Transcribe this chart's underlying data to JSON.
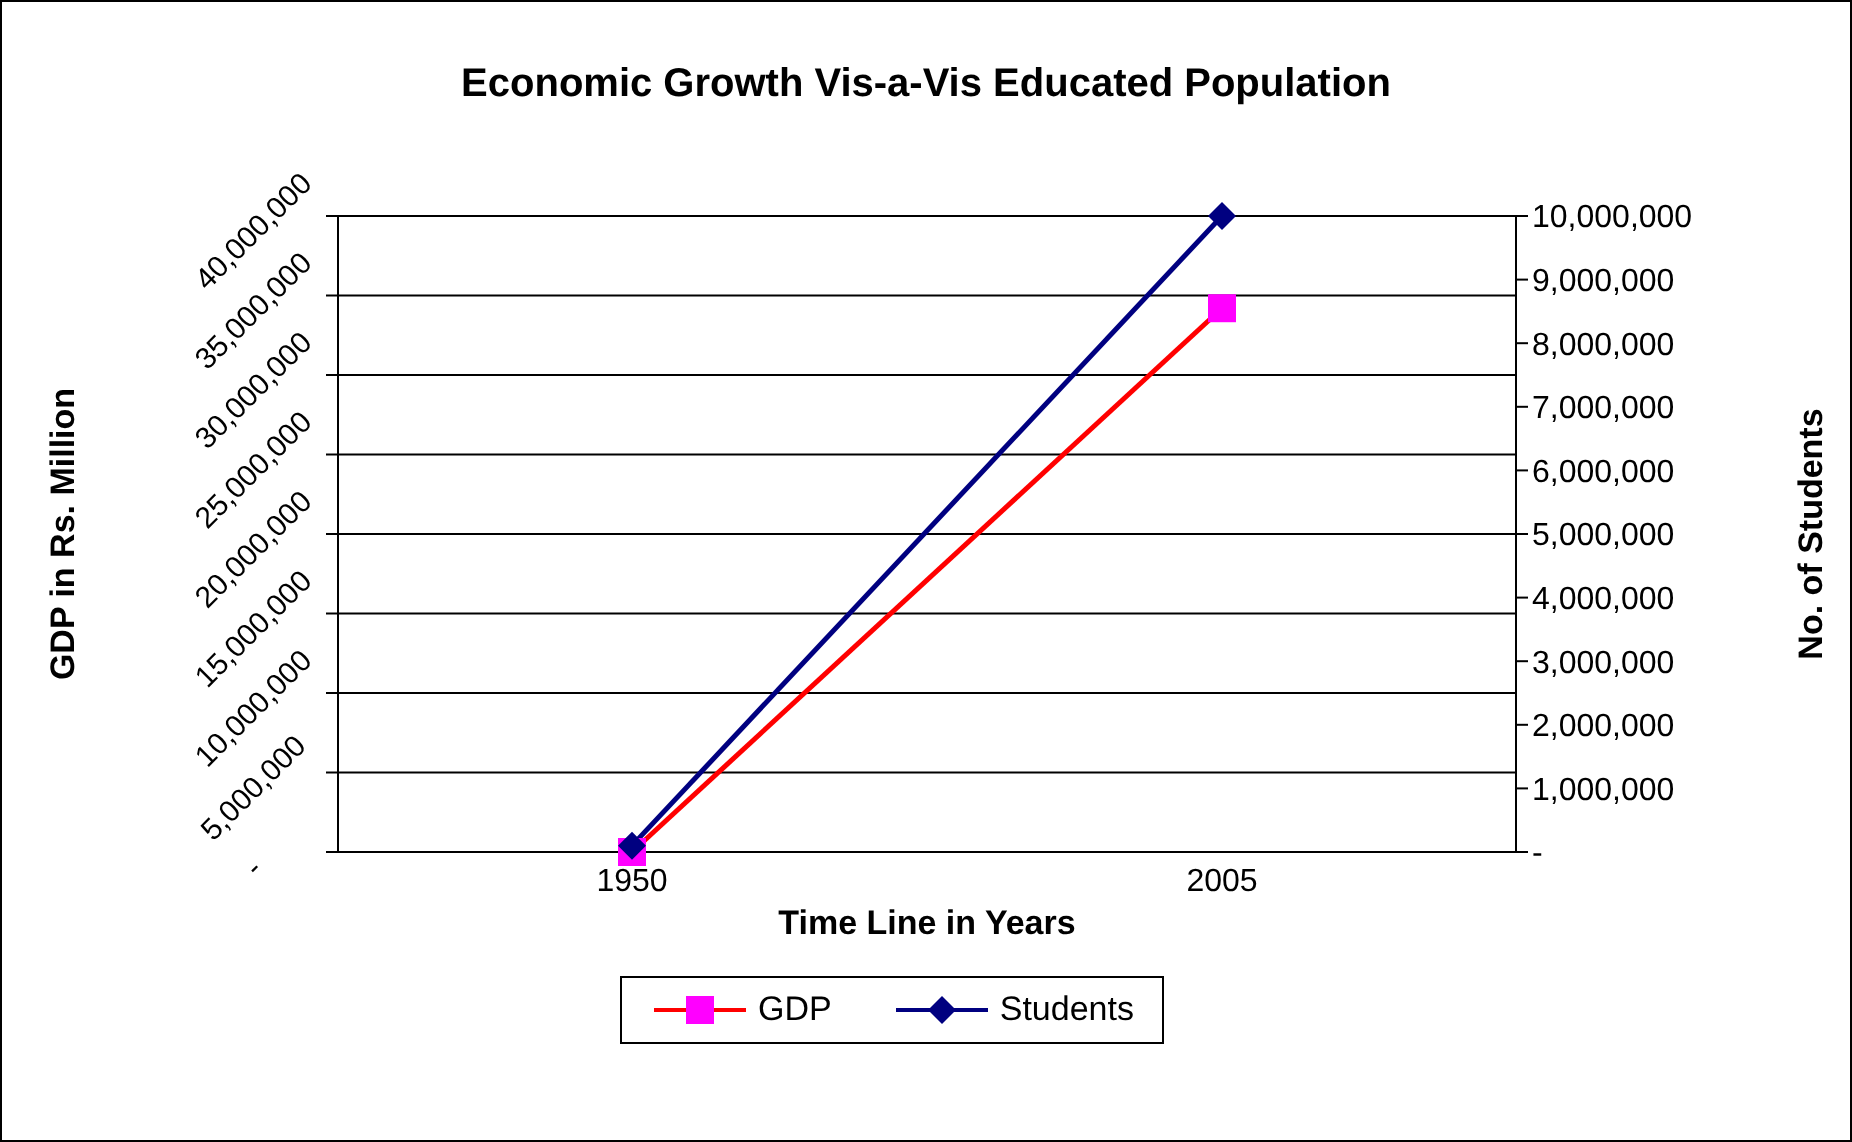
{
  "chart_data": {
    "type": "line",
    "title": "Economic Growth Vis-a-Vis Educated Population",
    "xlabel": "Time Line in Years",
    "ylabel": "GDP in Rs. Million",
    "y2label": "No. of Students",
    "categories": [
      "1950",
      "2005"
    ],
    "series": [
      {
        "name": "GDP",
        "color": "#ff0000",
        "colors": [
          "#ff00ff",
          "#ff00ff"
        ],
        "marker": "square",
        "values": [
          0,
          34200000
        ]
      },
      {
        "name": "Students",
        "color": "#000080",
        "colors": [
          "#000080",
          "#000080"
        ],
        "marker": "diamond",
        "axis": "y2",
        "values": [
          100000,
          10000000
        ]
      }
    ],
    "ylim": [
      0,
      40000000
    ],
    "yticks": [
      {
        "value": 0,
        "label": "-"
      },
      {
        "value": 5000000,
        "label": "5,000,000"
      },
      {
        "value": 10000000,
        "label": "10,000,000"
      },
      {
        "value": 15000000,
        "label": "15,000,000"
      },
      {
        "value": 20000000,
        "label": "20,000,000"
      },
      {
        "value": 25000000,
        "label": "25,000,000"
      },
      {
        "value": 30000000,
        "label": "30,000,000"
      },
      {
        "value": 35000000,
        "label": "35,000,000"
      },
      {
        "value": 40000000,
        "label": "40,000,000"
      }
    ],
    "y2lim": [
      0,
      10000000
    ],
    "y2ticks": [
      {
        "value": 0,
        "label": "-"
      },
      {
        "value": 1000000,
        "label": "1,000,000"
      },
      {
        "value": 2000000,
        "label": "2,000,000"
      },
      {
        "value": 3000000,
        "label": "3,000,000"
      },
      {
        "value": 4000000,
        "label": "4,000,000"
      },
      {
        "value": 5000000,
        "label": "5,000,000"
      },
      {
        "value": 6000000,
        "label": "6,000,000"
      },
      {
        "value": 7000000,
        "label": "7,000,000"
      },
      {
        "value": 8000000,
        "label": "8,000,000"
      },
      {
        "value": 9000000,
        "label": "9,000,000"
      },
      {
        "value": 10000000,
        "label": "10,000,000"
      }
    ],
    "grid": "y",
    "legend": "bottom"
  }
}
